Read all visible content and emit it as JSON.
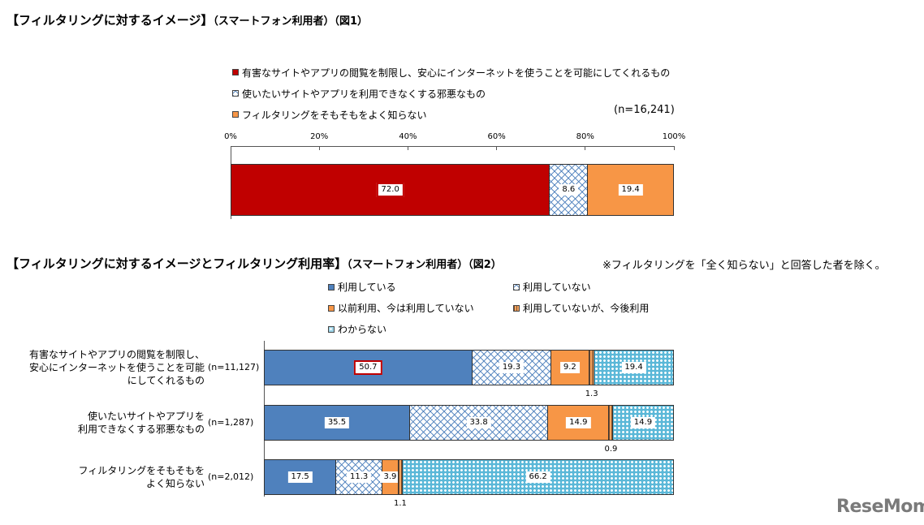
{
  "chart1": {
    "title_main": "【フィルタリングに対するイメージ】",
    "title_sub": "（スマートフォン利用者）（図1）",
    "legend": [
      {
        "label": "有害なサイトやアプリの閲覧を制限し、安心にインターネットを使うことを可能にしてくれるもの",
        "color": "#c00000",
        "pattern": "solid"
      },
      {
        "label": "使いたいサイトやアプリを利用できなくする邪悪なもの",
        "color": "#4f81bd",
        "pattern": "crosshatch"
      },
      {
        "label": "フィルタリングをそもそもをよく知らない",
        "color": "#f79646",
        "pattern": "solid"
      }
    ],
    "n_label": "(n=16,241)",
    "ticks": [
      "0%",
      "20%",
      "40%",
      "60%",
      "80%",
      "100%"
    ]
  },
  "chart2": {
    "title_main": "【フィルタリングに対するイメージとフィルタリング利用率】",
    "title_sub": "（スマートフォン利用者）（図2）",
    "note": "※フィルタリングを「全く知らない」と回答した者を除く。",
    "legend": [
      {
        "label": "利用している",
        "color": "#4f81bd",
        "pattern": "solid"
      },
      {
        "label": "利用していない",
        "color": "#4f81bd",
        "pattern": "crosshatch"
      },
      {
        "label": "以前利用、今は利用していない",
        "color": "#f79646",
        "pattern": "solid"
      },
      {
        "label": "利用していないが、今後利用",
        "color": "#f79646",
        "pattern": "stripe"
      },
      {
        "label": "わからない",
        "color": "#4bacc6",
        "pattern": "dots"
      }
    ],
    "rows": [
      {
        "label": "有害なサイトやアプリの閲覧を制限し、安心にインターネットを使うことを可能にしてくれるもの",
        "label_lines": [
          "有害なサイトやアプリの閲覧を制限し、",
          "安心にインターネットを使うことを可能",
          "にしてくれるもの"
        ],
        "n": "(n=11,127)"
      },
      {
        "label": "使いたいサイトやアプリを利用できなくする邪悪なもの",
        "label_lines": [
          "使いたいサイトやアプリを",
          "利用できなくする邪悪なもの"
        ],
        "n": "(n=1,287)"
      },
      {
        "label": "フィルタリングをそもそもをよく知らない",
        "label_lines": [
          "フィルタリングをそもそもを",
          "よく知らない"
        ],
        "n": "(n=2,012)"
      }
    ]
  },
  "logo": "ReseMom",
  "chart_data": [
    {
      "type": "bar",
      "orientation": "horizontal-stacked",
      "title": "【フィルタリングに対するイメージ】（スマートフォン利用者）（図1）",
      "categories": [
        "(n=16,241)"
      ],
      "series": [
        {
          "name": "有害なサイトやアプリの閲覧を制限し、安心にインターネットを使うことを可能にしてくれるもの",
          "values": [
            72.0
          ]
        },
        {
          "name": "使いたいサイトやアプリを利用できなくする邪悪なもの",
          "values": [
            8.6
          ]
        },
        {
          "name": "フィルタリングをそもそもをよく知らない",
          "values": [
            19.4
          ]
        }
      ],
      "xlim": [
        0,
        100
      ],
      "highlight": [
        0
      ],
      "legend": "top"
    },
    {
      "type": "bar",
      "orientation": "horizontal-stacked",
      "title": "【フィルタリングに対するイメージとフィルタリング利用率】（スマートフォン利用者）（図2）",
      "categories": [
        "有害なサイトやアプリの閲覧を制限し、安心にインターネットを使うことを可能にしてくれるもの",
        "使いたいサイトやアプリを利用できなくする邪悪なもの",
        "フィルタリングをそもそもをよく知らない"
      ],
      "series": [
        {
          "name": "利用している",
          "values": [
            50.7,
            35.5,
            17.5
          ]
        },
        {
          "name": "利用していない",
          "values": [
            19.3,
            33.8,
            11.3
          ]
        },
        {
          "name": "以前利用、今は利用していない",
          "values": [
            9.2,
            14.9,
            3.9
          ]
        },
        {
          "name": "利用していないが、今後利用",
          "values": [
            1.3,
            0.9,
            1.1
          ]
        },
        {
          "name": "わからない",
          "values": [
            19.4,
            14.9,
            66.2
          ]
        }
      ],
      "label_below_series": [
        3
      ],
      "highlight_row": 0,
      "legend": "top"
    }
  ]
}
